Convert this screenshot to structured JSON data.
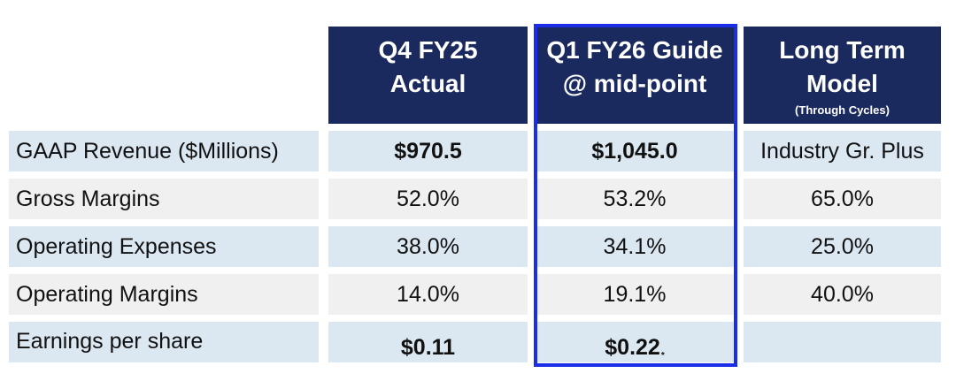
{
  "headers": {
    "q4_line1": "Q4 FY25",
    "q4_line2": "Actual",
    "q1_line1": "Q1 FY26 Guide",
    "q1_line2": "@ mid-point",
    "lt_line1": "Long Term",
    "lt_line2": "Model",
    "lt_sub": "(Through Cycles)"
  },
  "rows": [
    {
      "label": "GAAP Revenue ($Millions)",
      "q4": "$970.5",
      "q1": "$1,045.0",
      "lt": "Industry Gr. Plus"
    },
    {
      "label": "Gross Margins",
      "q4": "52.0%",
      "q1": "53.2%",
      "lt": "65.0%"
    },
    {
      "label": "Operating Expenses",
      "q4": "38.0%",
      "q1": "34.1%",
      "lt": "25.0%"
    },
    {
      "label": "Operating Margins",
      "q4": "14.0%",
      "q1": "19.1%",
      "lt": "40.0%"
    },
    {
      "label": "Earnings per share",
      "q4": "$0.11",
      "q1": "$0.22",
      "q1_marker": "*",
      "lt": ""
    }
  ],
  "colors": {
    "header_bg": "#1a2a5e",
    "row_blue": "#dbe8f1",
    "row_grey": "#f0f0f0",
    "highlight_border": "#1a2ee8"
  }
}
